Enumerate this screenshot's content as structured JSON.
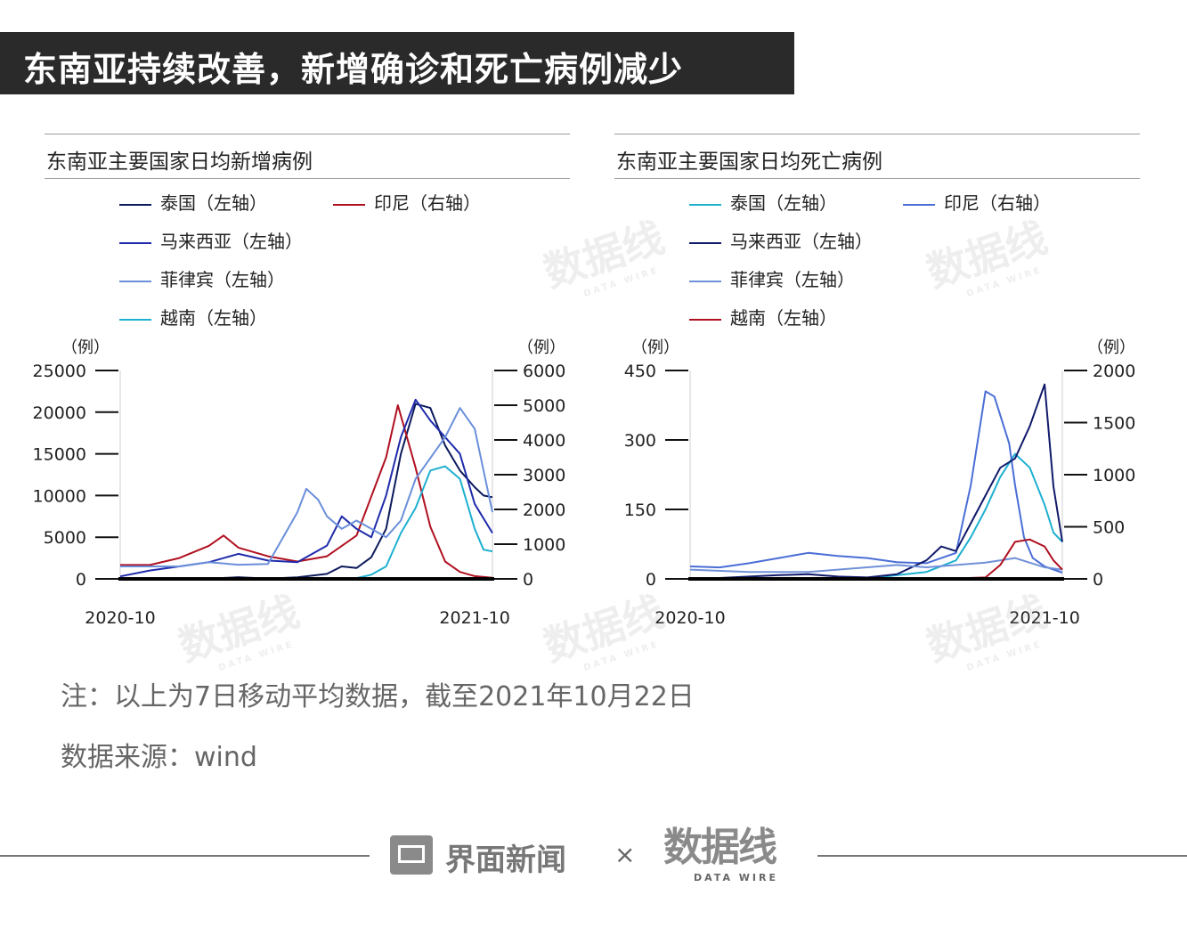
{
  "header": {
    "title": "东南亚持续改善，新增确诊和死亡病例减少"
  },
  "charts": {
    "left": {
      "title": "东南亚主要国家日均新增病例"
    },
    "right": {
      "title": "东南亚主要国家日均死亡病例"
    }
  },
  "chart_data": [
    {
      "type": "line",
      "title": "东南亚主要国家日均新增病例",
      "left_axis": {
        "unit": "（例）",
        "ylim": [
          0,
          25000
        ],
        "ticks": [
          0,
          5000,
          10000,
          15000,
          20000,
          25000
        ]
      },
      "right_axis": {
        "unit": "（例）",
        "ylim": [
          0,
          6000
        ],
        "ticks": [
          0,
          1000,
          2000,
          3000,
          4000,
          5000,
          6000
        ]
      },
      "x_ticks": [
        "2020-10",
        "2021-10"
      ],
      "x_range_index": [
        0,
        12.6
      ],
      "legend_placement": "top",
      "series": [
        {
          "name": "泰国（左轴）",
          "axis": "left",
          "color": "#0c1a5c",
          "points": [
            [
              0,
              0
            ],
            [
              3,
              10
            ],
            [
              4,
              200
            ],
            [
              5,
              20
            ],
            [
              6,
              180
            ],
            [
              7,
              600
            ],
            [
              7.5,
              1500
            ],
            [
              8,
              1300
            ],
            [
              8.5,
              2600
            ],
            [
              9,
              6000
            ],
            [
              9.5,
              15000
            ],
            [
              10,
              21000
            ],
            [
              10.5,
              20500
            ],
            [
              11,
              16000
            ],
            [
              11.5,
              13000
            ],
            [
              12,
              11000
            ],
            [
              12.3,
              10000
            ],
            [
              12.6,
              9800
            ]
          ]
        },
        {
          "name": "印尼（右轴）",
          "axis": "right",
          "color": "#b01020",
          "points": [
            [
              0,
              400
            ],
            [
              1,
              400
            ],
            [
              2,
              600
            ],
            [
              3,
              950
            ],
            [
              3.5,
              1250
            ],
            [
              4,
              900
            ],
            [
              5,
              650
            ],
            [
              6,
              500
            ],
            [
              7,
              650
            ],
            [
              8,
              1250
            ],
            [
              9,
              3500
            ],
            [
              9.4,
              5000
            ],
            [
              9.7,
              4100
            ],
            [
              10,
              3200
            ],
            [
              10.5,
              1500
            ],
            [
              11,
              500
            ],
            [
              11.5,
              200
            ],
            [
              12,
              80
            ],
            [
              12.6,
              30
            ]
          ]
        },
        {
          "name": "马来西亚（左轴）",
          "axis": "left",
          "color": "#1f2bab",
          "points": [
            [
              0,
              300
            ],
            [
              1,
              1000
            ],
            [
              2,
              1500
            ],
            [
              3,
              2000
            ],
            [
              4,
              3000
            ],
            [
              5,
              2200
            ],
            [
              6,
              2000
            ],
            [
              7,
              4000
            ],
            [
              7.5,
              7500
            ],
            [
              8,
              6000
            ],
            [
              8.5,
              5000
            ],
            [
              9,
              10000
            ],
            [
              9.5,
              17000
            ],
            [
              10,
              21500
            ],
            [
              10.5,
              19000
            ],
            [
              11,
              17000
            ],
            [
              11.5,
              15000
            ],
            [
              12,
              9000
            ],
            [
              12.6,
              5500
            ]
          ]
        },
        {
          "name": "菲律宾（左轴）",
          "axis": "left",
          "color": "#6a8fda",
          "points": [
            [
              0,
              1500
            ],
            [
              1,
              1500
            ],
            [
              2,
              1500
            ],
            [
              3,
              2000
            ],
            [
              4,
              1700
            ],
            [
              5,
              1800
            ],
            [
              6,
              8000
            ],
            [
              6.3,
              10800
            ],
            [
              6.7,
              9500
            ],
            [
              7,
              7500
            ],
            [
              7.5,
              6000
            ],
            [
              8,
              7000
            ],
            [
              8.5,
              6000
            ],
            [
              9,
              5000
            ],
            [
              9.5,
              7000
            ],
            [
              10,
              12000
            ],
            [
              11,
              17000
            ],
            [
              11.5,
              20500
            ],
            [
              12,
              18000
            ],
            [
              12.3,
              13000
            ],
            [
              12.6,
              8000
            ]
          ]
        },
        {
          "name": "越南（左轴）",
          "axis": "left",
          "color": "#1eb0d0",
          "points": [
            [
              0,
              10
            ],
            [
              6,
              20
            ],
            [
              8,
              100
            ],
            [
              8.5,
              500
            ],
            [
              9,
              1500
            ],
            [
              9.5,
              5500
            ],
            [
              10,
              8500
            ],
            [
              10.5,
              13000
            ],
            [
              11,
              13500
            ],
            [
              11.5,
              12000
            ],
            [
              12,
              6000
            ],
            [
              12.3,
              3500
            ],
            [
              12.6,
              3300
            ]
          ]
        }
      ]
    },
    {
      "type": "line",
      "title": "东南亚主要国家日均死亡病例",
      "left_axis": {
        "unit": "（例）",
        "ylim": [
          0,
          450
        ],
        "ticks": [
          0,
          150,
          300,
          450
        ]
      },
      "right_axis": {
        "unit": "（例）",
        "ylim": [
          0,
          2000
        ],
        "ticks": [
          0,
          500,
          1000,
          1500,
          2000
        ]
      },
      "x_ticks": [
        "2020-10",
        "2021-10"
      ],
      "x_range_index": [
        0,
        12.6
      ],
      "legend_placement": "top",
      "series": [
        {
          "name": "泰国（左轴）",
          "axis": "left",
          "color": "#1eb0d0",
          "points": [
            [
              0,
              0
            ],
            [
              3,
              0
            ],
            [
              6,
              1
            ],
            [
              8,
              15
            ],
            [
              9,
              40
            ],
            [
              9.5,
              90
            ],
            [
              10,
              150
            ],
            [
              10.5,
              220
            ],
            [
              11,
              270
            ],
            [
              11.5,
              240
            ],
            [
              12,
              160
            ],
            [
              12.3,
              100
            ],
            [
              12.6,
              80
            ]
          ]
        },
        {
          "name": "印尼（右轴）",
          "axis": "right",
          "color": "#4b6ed6",
          "points": [
            [
              0,
              120
            ],
            [
              1,
              110
            ],
            [
              2,
              150
            ],
            [
              3,
              200
            ],
            [
              4,
              250
            ],
            [
              5,
              220
            ],
            [
              6,
              200
            ],
            [
              7,
              160
            ],
            [
              8,
              150
            ],
            [
              9,
              250
            ],
            [
              9.5,
              900
            ],
            [
              10,
              1800
            ],
            [
              10.3,
              1750
            ],
            [
              10.8,
              1300
            ],
            [
              11,
              900
            ],
            [
              11.3,
              400
            ],
            [
              11.6,
              200
            ],
            [
              12,
              120
            ],
            [
              12.6,
              60
            ]
          ]
        },
        {
          "name": "马来西亚（左轴）",
          "axis": "left",
          "color": "#101a6a",
          "points": [
            [
              0,
              1
            ],
            [
              1,
              2
            ],
            [
              2,
              5
            ],
            [
              3,
              8
            ],
            [
              4,
              10
            ],
            [
              5,
              5
            ],
            [
              6,
              3
            ],
            [
              7,
              10
            ],
            [
              8,
              40
            ],
            [
              8.5,
              70
            ],
            [
              9,
              60
            ],
            [
              9.5,
              120
            ],
            [
              10,
              180
            ],
            [
              10.5,
              240
            ],
            [
              11,
              260
            ],
            [
              11.5,
              330
            ],
            [
              12,
              420
            ],
            [
              12.3,
              200
            ],
            [
              12.6,
              80
            ]
          ]
        },
        {
          "name": "菲律宾（左轴）",
          "axis": "left",
          "color": "#7090d8",
          "points": [
            [
              0,
              20
            ],
            [
              2,
              15
            ],
            [
              4,
              15
            ],
            [
              6,
              25
            ],
            [
              7,
              30
            ],
            [
              8,
              25
            ],
            [
              9,
              30
            ],
            [
              10,
              35
            ],
            [
              11,
              45
            ],
            [
              11.5,
              35
            ],
            [
              12,
              25
            ],
            [
              12.6,
              20
            ]
          ]
        },
        {
          "name": "越南（左轴）",
          "axis": "left",
          "color": "#b01020",
          "points": [
            [
              0,
              0
            ],
            [
              6,
              0
            ],
            [
              8,
              0
            ],
            [
              9,
              1
            ],
            [
              10,
              3
            ],
            [
              10.5,
              30
            ],
            [
              11,
              80
            ],
            [
              11.5,
              85
            ],
            [
              12,
              70
            ],
            [
              12.3,
              40
            ],
            [
              12.6,
              20
            ]
          ]
        }
      ]
    }
  ],
  "notes": {
    "note": "注：以上为7日移动平均数据，截至2021年10月22日",
    "source": "数据来源：wind"
  },
  "footer": {
    "brand": "界面新闻",
    "times": "×",
    "partner": "数据线",
    "partner_sub": "DATA WIRE"
  },
  "watermark": {
    "text": "数据线",
    "sub": "DATA WIRE"
  }
}
